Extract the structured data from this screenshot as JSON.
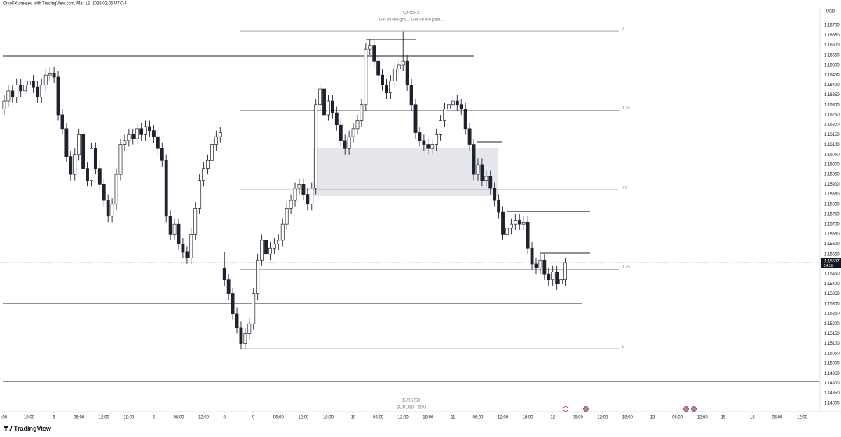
{
  "header": {
    "credit": "OrkoFX created with TradingView.com, Mar 12, 2026 03:05 UTC-4",
    "brand": "TradingView"
  },
  "chart_data": {
    "type": "candlestick",
    "title": "OrkoFX",
    "subtitle": "Get off the grid... Get on the path...",
    "currency": "USD",
    "watermark_date": "12/3/2026",
    "symbol": "EURUSD | 60M",
    "countdown": "54:28",
    "x": [
      0,
      1,
      2,
      3,
      4,
      5,
      6,
      7,
      8,
      9,
      10,
      11,
      12,
      13,
      14,
      15,
      16,
      17,
      18,
      19,
      20,
      21,
      22,
      23,
      24,
      25,
      26,
      27,
      28,
      29,
      30,
      31,
      32,
      33,
      34,
      35,
      36,
      37,
      38,
      39,
      40,
      41,
      42,
      43,
      44,
      45,
      46,
      47,
      48,
      49,
      50,
      51,
      52,
      53,
      54,
      55,
      56,
      57,
      58,
      59,
      60,
      61,
      62,
      63,
      64,
      65,
      66,
      67,
      68,
      69,
      70,
      71,
      72,
      73,
      74,
      75,
      76,
      77,
      78,
      79,
      80,
      81,
      82,
      83,
      84,
      85,
      86,
      87,
      88,
      89,
      90,
      91,
      92,
      93,
      94,
      95,
      96,
      97,
      98,
      99,
      100,
      101,
      102,
      103,
      104,
      105,
      106,
      107,
      108,
      109,
      110,
      111,
      112,
      113,
      114,
      115,
      116,
      117,
      118,
      119,
      120,
      121,
      122,
      123,
      124,
      125,
      126,
      127,
      128,
      129,
      130,
      131,
      132,
      133,
      134,
      135
    ],
    "open": [
      1.1628,
      1.1632,
      1.1637,
      1.1634,
      1.164,
      1.1637,
      1.164,
      1.1642,
      1.1639,
      1.1634,
      1.164,
      1.1645,
      1.1646,
      1.1644,
      1.1625,
      1.1618,
      1.1604,
      1.1595,
      1.1605,
      1.1615,
      1.1598,
      1.1592,
      1.1608,
      1.1598,
      1.159,
      1.1582,
      1.1574,
      1.158,
      1.1595,
      1.161,
      1.1612,
      1.1615,
      1.1613,
      1.1618,
      1.1615,
      1.1619,
      1.1617,
      1.1614,
      1.1608,
      1.1602,
      1.1574,
      1.1565,
      1.157,
      1.156,
      1.1556,
      1.1553,
      1.1565,
      1.1578,
      1.1592,
      1.1598,
      1.1602,
      1.161,
      1.1614,
      1.1548,
      1.1542,
      1.1535,
      1.1525,
      1.1518,
      1.151,
      1.1515,
      1.152,
      1.1535,
      1.1552,
      1.1562,
      1.1555,
      1.1558,
      1.156,
      1.1562,
      1.157,
      1.1578,
      1.1582,
      1.1588,
      1.159,
      1.1585,
      1.158,
      1.1588,
      1.163,
      1.1638,
      1.1625,
      1.1632,
      1.1626,
      1.162,
      1.1612,
      1.1608,
      1.1614,
      1.1618,
      1.1622,
      1.163,
      1.1658,
      1.166,
      1.1652,
      1.1645,
      1.164,
      1.1636,
      1.1642,
      1.1648,
      1.165,
      1.1652,
      1.164,
      1.163,
      1.1616,
      1.1612,
      1.161,
      1.1608,
      1.161,
      1.1615,
      1.1622,
      1.1628,
      1.163,
      1.1632,
      1.163,
      1.1628,
      1.1618,
      1.161,
      1.1595,
      1.16,
      1.1592,
      1.1594,
      1.1588,
      1.1582,
      1.1576,
      1.1565,
      1.1568,
      1.157,
      1.1572,
      1.157,
      1.1571,
      1.1558,
      1.155,
      1.1548,
      1.1552,
      1.1545,
      1.1542,
      1.1546,
      1.154,
      1.1542
    ],
    "high": [
      1.1635,
      1.164,
      1.164,
      1.1643,
      1.1643,
      1.1643,
      1.1645,
      1.1645,
      1.1642,
      1.1643,
      1.1648,
      1.1649,
      1.1649,
      1.1647,
      1.1628,
      1.1621,
      1.1607,
      1.1608,
      1.1618,
      1.1618,
      1.1601,
      1.1611,
      1.1611,
      1.1601,
      1.1593,
      1.1585,
      1.1583,
      1.1598,
      1.1613,
      1.1615,
      1.1618,
      1.1618,
      1.1621,
      1.1621,
      1.1622,
      1.1622,
      1.162,
      1.1617,
      1.1611,
      1.1605,
      1.1577,
      1.1573,
      1.1573,
      1.1563,
      1.1559,
      1.1568,
      1.1581,
      1.1595,
      1.1601,
      1.1605,
      1.1613,
      1.1617,
      1.1619,
      1.1556,
      1.1545,
      1.1538,
      1.1528,
      1.1521,
      1.1518,
      1.1523,
      1.1538,
      1.1555,
      1.1565,
      1.1565,
      1.1561,
      1.1563,
      1.1565,
      1.1573,
      1.1581,
      1.1585,
      1.1591,
      1.1593,
      1.1593,
      1.1588,
      1.1591,
      1.1633,
      1.1641,
      1.1641,
      1.1635,
      1.1635,
      1.1629,
      1.1623,
      1.1615,
      1.1617,
      1.1621,
      1.1625,
      1.1633,
      1.1661,
      1.1663,
      1.1663,
      1.1655,
      1.1648,
      1.1643,
      1.1645,
      1.1651,
      1.1653,
      1.1667,
      1.1655,
      1.1643,
      1.1633,
      1.1619,
      1.1615,
      1.1613,
      1.1613,
      1.1618,
      1.1625,
      1.1631,
      1.1633,
      1.1635,
      1.1635,
      1.1633,
      1.1631,
      1.1621,
      1.1613,
      1.1603,
      1.1603,
      1.1597,
      1.1597,
      1.1591,
      1.1585,
      1.1579,
      1.1571,
      1.1573,
      1.1575,
      1.1575,
      1.1574,
      1.1574,
      1.1561,
      1.1553,
      1.1555,
      1.1555,
      1.1548,
      1.1549,
      1.1549,
      1.1545,
      1.1553
    ],
    "low": [
      1.1625,
      1.1629,
      1.1631,
      1.1631,
      1.1634,
      1.1634,
      1.1637,
      1.1636,
      1.1631,
      1.1631,
      1.1637,
      1.1642,
      1.1641,
      1.1622,
      1.1615,
      1.1601,
      1.1592,
      1.1592,
      1.1602,
      1.1595,
      1.1589,
      1.1589,
      1.1595,
      1.1587,
      1.1579,
      1.1571,
      1.1571,
      1.1577,
      1.1592,
      1.1607,
      1.1609,
      1.161,
      1.161,
      1.1612,
      1.1612,
      1.1614,
      1.1611,
      1.1605,
      1.1599,
      1.1571,
      1.1562,
      1.1562,
      1.1557,
      1.1553,
      1.155,
      1.155,
      1.1562,
      1.1575,
      1.1589,
      1.1595,
      1.1599,
      1.1607,
      1.1611,
      1.1539,
      1.1532,
      1.1522,
      1.1515,
      1.1507,
      1.1507,
      1.1512,
      1.1517,
      1.1532,
      1.1549,
      1.1552,
      1.1552,
      1.1555,
      1.1557,
      1.1559,
      1.1567,
      1.1575,
      1.1579,
      1.1585,
      1.1582,
      1.1577,
      1.1577,
      1.1585,
      1.1627,
      1.1622,
      1.1622,
      1.1623,
      1.1617,
      1.1609,
      1.1605,
      1.1605,
      1.1611,
      1.1615,
      1.1619,
      1.1627,
      1.1655,
      1.1649,
      1.1642,
      1.1637,
      1.1633,
      1.1633,
      1.1639,
      1.1645,
      1.1647,
      1.1637,
      1.1627,
      1.1613,
      1.1609,
      1.1607,
      1.1605,
      1.1605,
      1.1607,
      1.1612,
      1.1619,
      1.1625,
      1.1627,
      1.1627,
      1.1625,
      1.1615,
      1.1607,
      1.1592,
      1.1592,
      1.1589,
      1.1589,
      1.1585,
      1.1579,
      1.1573,
      1.1562,
      1.1562,
      1.1565,
      1.1567,
      1.1567,
      1.1567,
      1.1555,
      1.1547,
      1.1545,
      1.1545,
      1.1542,
      1.1539,
      1.1539,
      1.1537,
      1.1537,
      1.1539
    ],
    "close": [
      1.1632,
      1.1637,
      1.1634,
      1.164,
      1.1637,
      1.164,
      1.1642,
      1.1639,
      1.1634,
      1.164,
      1.1645,
      1.1646,
      1.1644,
      1.1625,
      1.1618,
      1.1604,
      1.1595,
      1.1605,
      1.1615,
      1.1598,
      1.1592,
      1.1608,
      1.1598,
      1.159,
      1.1582,
      1.1574,
      1.158,
      1.1595,
      1.161,
      1.1612,
      1.1615,
      1.1613,
      1.1618,
      1.1615,
      1.1619,
      1.1617,
      1.1614,
      1.1608,
      1.1602,
      1.1574,
      1.1565,
      1.157,
      1.156,
      1.1556,
      1.1553,
      1.1565,
      1.1578,
      1.1592,
      1.1598,
      1.1602,
      1.161,
      1.1614,
      1.1616,
      1.1542,
      1.1535,
      1.1525,
      1.1518,
      1.151,
      1.1515,
      1.152,
      1.1535,
      1.1552,
      1.1562,
      1.1555,
      1.1558,
      1.156,
      1.1562,
      1.157,
      1.1578,
      1.1582,
      1.1588,
      1.159,
      1.1585,
      1.158,
      1.1588,
      1.163,
      1.1638,
      1.1625,
      1.1632,
      1.1626,
      1.162,
      1.1612,
      1.1608,
      1.1614,
      1.1618,
      1.1622,
      1.163,
      1.1658,
      1.166,
      1.1652,
      1.1645,
      1.164,
      1.1636,
      1.1642,
      1.1648,
      1.165,
      1.1652,
      1.164,
      1.163,
      1.1616,
      1.1612,
      1.161,
      1.1608,
      1.161,
      1.1615,
      1.1622,
      1.1628,
      1.163,
      1.1632,
      1.163,
      1.1628,
      1.1618,
      1.161,
      1.1595,
      1.16,
      1.1592,
      1.1594,
      1.1588,
      1.1582,
      1.1576,
      1.1565,
      1.1568,
      1.157,
      1.1572,
      1.157,
      1.1571,
      1.1558,
      1.155,
      1.1548,
      1.1552,
      1.1545,
      1.1542,
      1.1546,
      1.154,
      1.1542,
      1.15507
    ],
    "up_color": "#ffffff",
    "down_color": "#1e222d",
    "border_color": "#1e222d",
    "xlim": [
      -1,
      196.3
    ],
    "ylim": [
      1.14757,
      1.16792
    ],
    "xticks": [
      {
        "value": 0,
        "label": ":00"
      },
      {
        "value": 6,
        "label": "18:00"
      },
      {
        "value": 12,
        "label": "5"
      },
      {
        "value": 18,
        "label": "06:00"
      },
      {
        "value": 24,
        "label": "12:00"
      },
      {
        "value": 30,
        "label": "18:00"
      },
      {
        "value": 36,
        "label": "6"
      },
      {
        "value": 42,
        "label": "06:00"
      },
      {
        "value": 48,
        "label": "12:00"
      },
      {
        "value": 53,
        "label": "8"
      },
      {
        "value": 60,
        "label": "9"
      },
      {
        "value": 66,
        "label": "06:00"
      },
      {
        "value": 72,
        "label": "12:00"
      },
      {
        "value": 78,
        "label": "18:00"
      },
      {
        "value": 84,
        "label": "10"
      },
      {
        "value": 90,
        "label": "06:00"
      },
      {
        "value": 96,
        "label": "12:00"
      },
      {
        "value": 102,
        "label": "18:00"
      },
      {
        "value": 108,
        "label": "11"
      },
      {
        "value": 114,
        "label": "06:00"
      },
      {
        "value": 120,
        "label": "12:00"
      },
      {
        "value": 126,
        "label": "18:00"
      },
      {
        "value": 132,
        "label": "12"
      },
      {
        "value": 138,
        "label": "06:00"
      },
      {
        "value": 144,
        "label": "12:00"
      },
      {
        "value": 150,
        "label": "18:00"
      },
      {
        "value": 156,
        "label": "13"
      },
      {
        "value": 162,
        "label": "06:00"
      },
      {
        "value": 168,
        "label": "12:00"
      },
      {
        "value": 173,
        "label": "15"
      },
      {
        "value": 180,
        "label": "16"
      },
      {
        "value": 186,
        "label": "06:00"
      },
      {
        "value": 192,
        "label": "12:00"
      }
    ],
    "yticks": [
      {
        "value": 1.167,
        "label": "1.16700"
      },
      {
        "value": 1.1665,
        "label": "1.16650"
      },
      {
        "value": 1.166,
        "label": "1.16600"
      },
      {
        "value": 1.1655,
        "label": "1.16550"
      },
      {
        "value": 1.165,
        "label": "1.16500"
      },
      {
        "value": 1.1645,
        "label": "1.16450"
      },
      {
        "value": 1.164,
        "label": "1.16400"
      },
      {
        "value": 1.1635,
        "label": "1.16350"
      },
      {
        "value": 1.163,
        "label": "1.16300"
      },
      {
        "value": 1.1625,
        "label": "1.16250"
      },
      {
        "value": 1.162,
        "label": "1.16200"
      },
      {
        "value": 1.1615,
        "label": "1.16150"
      },
      {
        "value": 1.161,
        "label": "1.16100"
      },
      {
        "value": 1.1605,
        "label": "1.16050"
      },
      {
        "value": 1.16,
        "label": "1.16000"
      },
      {
        "value": 1.1595,
        "label": "1.15950"
      },
      {
        "value": 1.159,
        "label": "1.15900"
      },
      {
        "value": 1.1585,
        "label": "1.15850"
      },
      {
        "value": 1.158,
        "label": "1.15800"
      },
      {
        "value": 1.1575,
        "label": "1.15750"
      },
      {
        "value": 1.157,
        "label": "1.15700"
      },
      {
        "value": 1.1565,
        "label": "1.15650"
      },
      {
        "value": 1.156,
        "label": "1.15600"
      },
      {
        "value": 1.1555,
        "label": "1.15550"
      },
      {
        "value": 1.155,
        "label": "1.15500"
      },
      {
        "value": 1.1545,
        "label": "1.15450"
      },
      {
        "value": 1.154,
        "label": "1.15400"
      },
      {
        "value": 1.1535,
        "label": "1.15350"
      },
      {
        "value": 1.153,
        "label": "1.15300"
      },
      {
        "value": 1.1525,
        "label": "1.15250"
      },
      {
        "value": 1.152,
        "label": "1.15200"
      },
      {
        "value": 1.1515,
        "label": "1.15150"
      },
      {
        "value": 1.151,
        "label": "1.15100"
      },
      {
        "value": 1.1505,
        "label": "1.15050"
      },
      {
        "value": 1.15,
        "label": "1.15000"
      },
      {
        "value": 1.1495,
        "label": "1.14950"
      },
      {
        "value": 1.149,
        "label": "1.14900"
      },
      {
        "value": 1.1485,
        "label": "1.14850"
      },
      {
        "value": 1.148,
        "label": "1.14800"
      }
    ],
    "fib": {
      "levels": [
        0,
        0.25,
        0.5,
        0.75,
        1
      ],
      "price_0": 1.16672,
      "price_1": 1.15074,
      "x_start": 56.8,
      "x_end": 147.9,
      "color": "#9e9e9e"
    },
    "grid": false
  }
}
